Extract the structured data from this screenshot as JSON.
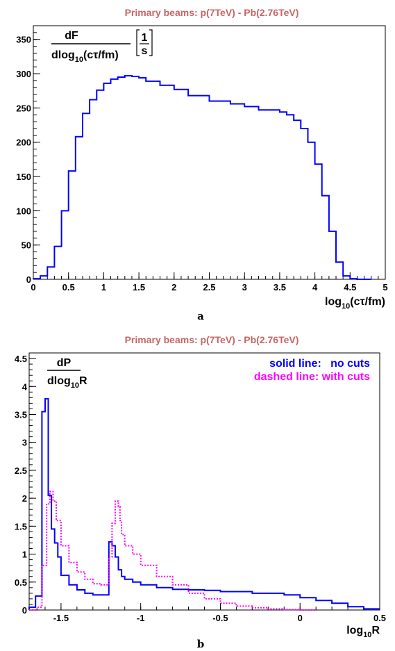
{
  "chart_data": [
    {
      "type": "line",
      "subtype": "step-histogram",
      "title": "Primary beams: p(7TeV) - Pb(2.76TeV)",
      "xlabel": "log10(cτ/fm)",
      "ylabel": "dF / dlog10(cτ/fm) [1/s]",
      "ylabel_parts": {
        "numerator": "dF",
        "denominator_pre": "dlog",
        "denominator_sub": "10",
        "denominator_post": "(cτ/fm)",
        "unit_num": "1",
        "unit_den": "s"
      },
      "xlabel_parts": {
        "pre": "log",
        "sub": "10",
        "post": "(cτ/fm)"
      },
      "xlim": [
        0,
        5
      ],
      "ylim": [
        0,
        370
      ],
      "xticks": [
        "0",
        "0.5",
        "1",
        "1.5",
        "2",
        "2.5",
        "3",
        "3.5",
        "4",
        "4.5",
        "5"
      ],
      "yticks": [
        "0",
        "50",
        "100",
        "150",
        "200",
        "250",
        "300",
        "350"
      ],
      "caption": "a",
      "series": [
        {
          "color": "#0000ff",
          "style": "solid",
          "x": [
            0.1,
            0.2,
            0.3,
            0.4,
            0.5,
            0.6,
            0.7,
            0.8,
            0.9,
            1.0,
            1.1,
            1.2,
            1.3,
            1.4,
            1.5,
            1.6,
            1.8,
            2.0,
            2.2,
            2.5,
            2.8,
            3.0,
            3.2,
            3.5,
            3.6,
            3.7,
            3.8,
            3.9,
            4.0,
            4.1,
            4.2,
            4.3,
            4.4,
            4.5,
            4.6,
            4.8
          ],
          "y": [
            1,
            5,
            18,
            48,
            100,
            158,
            208,
            242,
            262,
            276,
            286,
            292,
            295,
            297,
            296,
            294,
            289,
            283,
            277,
            268,
            260,
            256,
            252,
            247,
            244,
            240,
            232,
            220,
            200,
            168,
            122,
            70,
            25,
            5,
            1,
            0
          ]
        }
      ]
    },
    {
      "type": "line",
      "subtype": "step-histogram",
      "title": "Primary beams: p(7TeV) - Pb(2.76TeV)",
      "xlabel": "log10R",
      "ylabel": "dP / dlog10R",
      "ylabel_parts": {
        "numerator": "dP",
        "denominator_pre": "dlog",
        "denominator_sub": "10",
        "denominator_post": "R"
      },
      "xlabel_parts": {
        "pre": "log",
        "sub": "10",
        "post": "R"
      },
      "xlim": [
        -1.7,
        0.5
      ],
      "ylim": [
        0,
        4.6
      ],
      "xticks": [
        "-1.5",
        "-1",
        "-0.5",
        "0",
        "0.5"
      ],
      "yticks": [
        "0",
        "0.5",
        "1",
        "1.5",
        "2",
        "2.5",
        "3",
        "3.5",
        "4",
        "4.5"
      ],
      "caption": "b",
      "legend_position": "top-right",
      "series": [
        {
          "name": "solid line:   no cuts",
          "color": "#0000ff",
          "style": "solid",
          "x": [
            -1.66,
            -1.62,
            -1.6,
            -1.58,
            -1.56,
            -1.54,
            -1.52,
            -1.5,
            -1.45,
            -1.4,
            -1.35,
            -1.3,
            -1.25,
            -1.2,
            -1.18,
            -1.16,
            -1.14,
            -1.12,
            -1.1,
            -1.05,
            -1.0,
            -0.9,
            -0.8,
            -0.7,
            -0.6,
            -0.5,
            -0.3,
            -0.1,
            0.0,
            0.1,
            0.2,
            0.3,
            0.4,
            0.5
          ],
          "y": [
            0.05,
            0.25,
            3.55,
            3.78,
            2.05,
            1.45,
            1.2,
            0.95,
            0.62,
            0.45,
            0.36,
            0.3,
            0.27,
            0.27,
            1.22,
            1.15,
            0.95,
            0.72,
            0.6,
            0.55,
            0.5,
            0.45,
            0.4,
            0.37,
            0.36,
            0.35,
            0.33,
            0.3,
            0.27,
            0.22,
            0.17,
            0.12,
            0.06,
            0.02
          ]
        },
        {
          "name": "dashed line: with cuts",
          "color": "#ff00ff",
          "style": "dashed",
          "x": [
            -1.62,
            -1.59,
            -1.57,
            -1.55,
            -1.53,
            -1.5,
            -1.45,
            -1.4,
            -1.35,
            -1.3,
            -1.25,
            -1.2,
            -1.18,
            -1.16,
            -1.14,
            -1.13,
            -1.12,
            -1.1,
            -1.05,
            -1.0,
            -0.9,
            -0.8,
            -0.7,
            -0.6,
            -0.5,
            -0.4,
            -0.3,
            -0.2,
            -0.1,
            0.0,
            0.1
          ],
          "y": [
            0.05,
            0.8,
            1.9,
            2.12,
            1.95,
            1.6,
            1.15,
            0.85,
            0.68,
            0.55,
            0.47,
            0.45,
            0.95,
            1.55,
            1.95,
            1.85,
            1.6,
            1.35,
            1.15,
            1.0,
            0.8,
            0.6,
            0.45,
            0.3,
            0.2,
            0.12,
            0.07,
            0.04,
            0.02,
            0.01,
            0.0
          ]
        }
      ]
    }
  ]
}
